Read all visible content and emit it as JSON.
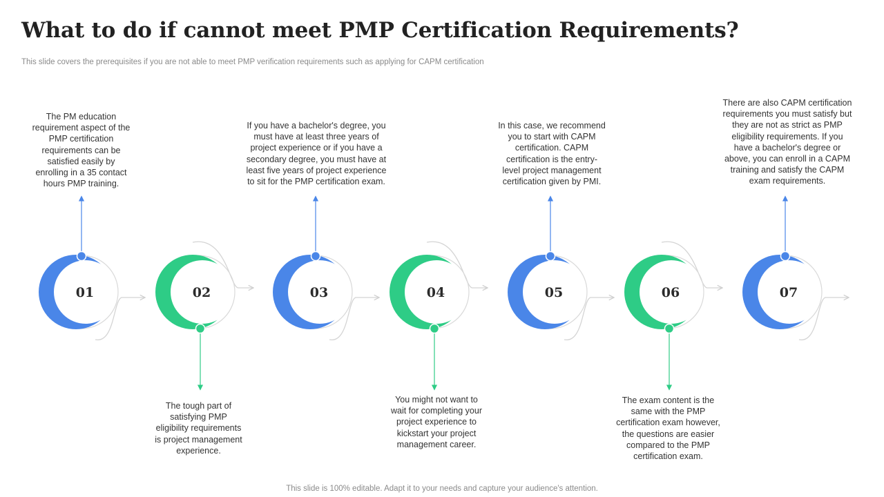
{
  "title": "What to do if cannot meet PMP Certification Requirements?",
  "subtitle": "This slide covers the prerequisites if you are not able to meet PMP verification requirements such as applying for CAPM  certification",
  "footer": "This slide is 100% editable. Adapt it to your needs and capture your audience's attention.",
  "colors": {
    "blue": "#4a86e8",
    "green": "#2ecc86",
    "outline": "#d4d4d4",
    "text": "#333333"
  },
  "steps": [
    {
      "number": "01",
      "color": "blue",
      "text": "The PM education\nrequirement  aspect of the\nPMP certification\nrequirements can be\nsatisfied easily by\nenrolling  in a 35 contact\nhours PMP training."
    },
    {
      "number": "02",
      "color": "green",
      "text": "The tough part of\nsatisfying PMP\neligibility requirements\nis project management\nexperience."
    },
    {
      "number": "03",
      "color": "blue",
      "text": "If you have a bachelor's degree,  you\nmust have  at least three years of\nproject experience  or if you have a\nsecondary degree, you must have at\nleast five  years of project experience\nto sit for the PMP certification exam."
    },
    {
      "number": "04",
      "color": "green",
      "text": "You might not want to\nwait for completing your\nproject experience to\nkickstart your project\nmanagement  career."
    },
    {
      "number": "05",
      "color": "blue",
      "text": "In this case, we recommend\nyou to start with CAPM\ncertification. CAPM\ncertification is the entry-\nlevel  project management\ncertification given  by PMI."
    },
    {
      "number": "06",
      "color": "green",
      "text": "The exam content is the\nsame with the PMP\ncertification exam however,\nthe questions are easier\ncompared to the PMP\ncertification exam."
    },
    {
      "number": "07",
      "color": "blue",
      "text": "There are also CAPM certification\nrequirements  you must satisfy but\nthey are not as strict as PMP\neligibility requirements.  If you\nhave  a bachelor's degree  or\nabove,  you can enroll in a CAPM\ntraining and satisfy the CAPM\nexam requirements."
    }
  ]
}
